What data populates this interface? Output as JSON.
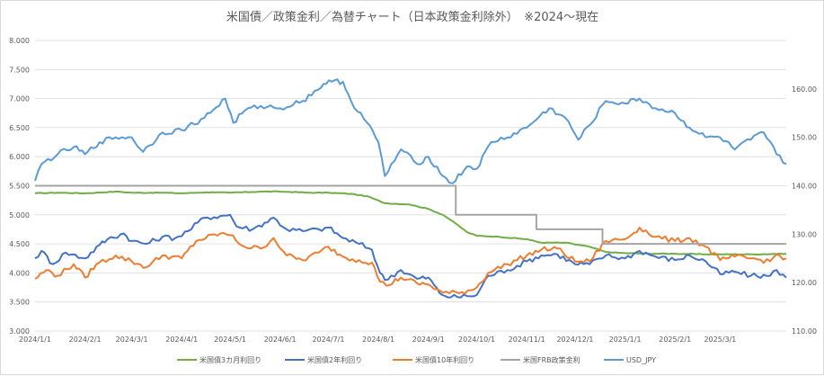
{
  "chart_data": {
    "type": "line",
    "title": "米国債／政策金利／為替チャート（日本政策金利除外）　※2024～現在",
    "x_ticks": [
      "2024/1/1",
      "2024/2/1",
      "2024/3/1",
      "2024/4/1",
      "2024/5/1",
      "2024/6/1",
      "2024/7/1",
      "2024/8/1",
      "2024/9/1",
      "2024/10/1",
      "2024/11/1",
      "2024/12/1",
      "2025/1/1",
      "2025/2/1",
      "2025/3/1"
    ],
    "y_left": {
      "min": 3.0,
      "max": 8.0,
      "step": 0.5,
      "tick_labels": [
        "3.000",
        "3.500",
        "4.000",
        "4.500",
        "5.000",
        "5.500",
        "6.000",
        "6.500",
        "7.000",
        "7.500",
        "8.000"
      ]
    },
    "y_right": {
      "min": 110,
      "max": 170,
      "step": 10,
      "tick_labels": [
        "110.00",
        "120.00",
        "130.00",
        "140.00",
        "150.00",
        "160.00"
      ]
    },
    "x_start": "2024-01-01",
    "x_end": "2025-04-11",
    "grid": "horizontal",
    "legend_position": "bottom",
    "series": [
      {
        "name": "米国債3カ月利回り",
        "color": "#70ad47",
        "axis": "left",
        "points": [
          [
            "2024-01-01",
            5.37
          ],
          [
            "2024-01-15",
            5.38
          ],
          [
            "2024-02-01",
            5.37
          ],
          [
            "2024-02-20",
            5.4
          ],
          [
            "2024-03-01",
            5.38
          ],
          [
            "2024-03-20",
            5.38
          ],
          [
            "2024-04-01",
            5.37
          ],
          [
            "2024-04-20",
            5.39
          ],
          [
            "2024-05-01",
            5.38
          ],
          [
            "2024-05-20",
            5.4
          ],
          [
            "2024-06-01",
            5.4
          ],
          [
            "2024-06-20",
            5.38
          ],
          [
            "2024-07-01",
            5.38
          ],
          [
            "2024-07-15",
            5.36
          ],
          [
            "2024-07-25",
            5.32
          ],
          [
            "2024-08-05",
            5.2
          ],
          [
            "2024-08-20",
            5.18
          ],
          [
            "2024-09-01",
            5.1
          ],
          [
            "2024-09-10",
            5.0
          ],
          [
            "2024-09-18",
            4.85
          ],
          [
            "2024-09-25",
            4.7
          ],
          [
            "2024-10-01",
            4.64
          ],
          [
            "2024-10-15",
            4.62
          ],
          [
            "2024-11-01",
            4.58
          ],
          [
            "2024-11-10",
            4.52
          ],
          [
            "2024-11-25",
            4.52
          ],
          [
            "2024-12-10",
            4.45
          ],
          [
            "2024-12-20",
            4.36
          ],
          [
            "2025-01-01",
            4.34
          ],
          [
            "2025-01-20",
            4.33
          ],
          [
            "2025-02-01",
            4.33
          ],
          [
            "2025-02-20",
            4.32
          ],
          [
            "2025-03-01",
            4.32
          ],
          [
            "2025-03-20",
            4.32
          ],
          [
            "2025-04-11",
            4.33
          ]
        ]
      },
      {
        "name": "米国債2年利回り",
        "color": "#4472c4",
        "axis": "left",
        "points": [
          [
            "2024-01-01",
            4.25
          ],
          [
            "2024-01-05",
            4.38
          ],
          [
            "2024-01-12",
            4.15
          ],
          [
            "2024-01-20",
            4.35
          ],
          [
            "2024-02-01",
            4.25
          ],
          [
            "2024-02-10",
            4.48
          ],
          [
            "2024-02-15",
            4.58
          ],
          [
            "2024-02-25",
            4.68
          ],
          [
            "2024-03-01",
            4.55
          ],
          [
            "2024-03-10",
            4.5
          ],
          [
            "2024-03-20",
            4.62
          ],
          [
            "2024-03-28",
            4.6
          ],
          [
            "2024-04-05",
            4.72
          ],
          [
            "2024-04-15",
            4.95
          ],
          [
            "2024-04-25",
            4.98
          ],
          [
            "2024-05-01",
            5.0
          ],
          [
            "2024-05-05",
            4.8
          ],
          [
            "2024-05-15",
            4.75
          ],
          [
            "2024-05-28",
            4.95
          ],
          [
            "2024-06-05",
            4.75
          ],
          [
            "2024-06-15",
            4.72
          ],
          [
            "2024-06-25",
            4.75
          ],
          [
            "2024-07-01",
            4.78
          ],
          [
            "2024-07-10",
            4.6
          ],
          [
            "2024-07-20",
            4.5
          ],
          [
            "2024-07-28",
            4.4
          ],
          [
            "2024-08-02",
            4.0
          ],
          [
            "2024-08-05",
            3.88
          ],
          [
            "2024-08-15",
            4.05
          ],
          [
            "2024-08-25",
            3.9
          ],
          [
            "2024-09-01",
            3.92
          ],
          [
            "2024-09-08",
            3.65
          ],
          [
            "2024-09-15",
            3.58
          ],
          [
            "2024-09-25",
            3.6
          ],
          [
            "2024-10-01",
            3.62
          ],
          [
            "2024-10-08",
            3.95
          ],
          [
            "2024-10-20",
            4.05
          ],
          [
            "2024-11-01",
            4.2
          ],
          [
            "2024-11-10",
            4.3
          ],
          [
            "2024-11-20",
            4.32
          ],
          [
            "2024-12-01",
            4.15
          ],
          [
            "2024-12-10",
            4.15
          ],
          [
            "2024-12-20",
            4.3
          ],
          [
            "2025-01-01",
            4.25
          ],
          [
            "2025-01-10",
            4.38
          ],
          [
            "2025-01-20",
            4.28
          ],
          [
            "2025-02-01",
            4.22
          ],
          [
            "2025-02-10",
            4.3
          ],
          [
            "2025-02-20",
            4.2
          ],
          [
            "2025-03-01",
            3.98
          ],
          [
            "2025-03-10",
            4.02
          ],
          [
            "2025-03-20",
            3.95
          ],
          [
            "2025-04-01",
            3.95
          ],
          [
            "2025-04-05",
            4.05
          ],
          [
            "2025-04-11",
            3.92
          ]
        ]
      },
      {
        "name": "米国債10年利回り",
        "color": "#ed7d31",
        "axis": "left",
        "points": [
          [
            "2024-01-01",
            3.9
          ],
          [
            "2024-01-08",
            4.05
          ],
          [
            "2024-01-15",
            3.95
          ],
          [
            "2024-01-25",
            4.15
          ],
          [
            "2024-02-01",
            3.92
          ],
          [
            "2024-02-08",
            4.15
          ],
          [
            "2024-02-20",
            4.3
          ],
          [
            "2024-03-01",
            4.2
          ],
          [
            "2024-03-10",
            4.1
          ],
          [
            "2024-03-20",
            4.3
          ],
          [
            "2024-04-01",
            4.25
          ],
          [
            "2024-04-10",
            4.55
          ],
          [
            "2024-04-25",
            4.68
          ],
          [
            "2024-05-01",
            4.65
          ],
          [
            "2024-05-10",
            4.45
          ],
          [
            "2024-05-20",
            4.42
          ],
          [
            "2024-05-28",
            4.6
          ],
          [
            "2024-06-05",
            4.3
          ],
          [
            "2024-06-15",
            4.22
          ],
          [
            "2024-06-25",
            4.35
          ],
          [
            "2024-07-01",
            4.45
          ],
          [
            "2024-07-10",
            4.28
          ],
          [
            "2024-07-20",
            4.22
          ],
          [
            "2024-07-28",
            4.18
          ],
          [
            "2024-08-02",
            3.85
          ],
          [
            "2024-08-06",
            3.78
          ],
          [
            "2024-08-15",
            3.92
          ],
          [
            "2024-08-25",
            3.82
          ],
          [
            "2024-09-01",
            3.8
          ],
          [
            "2024-09-10",
            3.66
          ],
          [
            "2024-09-20",
            3.65
          ],
          [
            "2024-10-01",
            3.75
          ],
          [
            "2024-10-08",
            4.0
          ],
          [
            "2024-10-20",
            4.15
          ],
          [
            "2024-11-01",
            4.3
          ],
          [
            "2024-11-10",
            4.4
          ],
          [
            "2024-11-20",
            4.42
          ],
          [
            "2024-12-01",
            4.2
          ],
          [
            "2024-12-10",
            4.2
          ],
          [
            "2024-12-20",
            4.55
          ],
          [
            "2025-01-01",
            4.58
          ],
          [
            "2025-01-10",
            4.78
          ],
          [
            "2025-01-20",
            4.62
          ],
          [
            "2025-02-01",
            4.55
          ],
          [
            "2025-02-10",
            4.6
          ],
          [
            "2025-02-20",
            4.45
          ],
          [
            "2025-03-01",
            4.22
          ],
          [
            "2025-03-10",
            4.28
          ],
          [
            "2025-03-20",
            4.25
          ],
          [
            "2025-04-01",
            4.2
          ],
          [
            "2025-04-05",
            4.32
          ],
          [
            "2025-04-11",
            4.25
          ]
        ]
      },
      {
        "name": "米国FRB政策金利",
        "color": "#a5a5a5",
        "axis": "left",
        "step": true,
        "points": [
          [
            "2024-01-01",
            5.5
          ],
          [
            "2024-09-18",
            5.5
          ],
          [
            "2024-09-18",
            5.0
          ],
          [
            "2024-11-07",
            5.0
          ],
          [
            "2024-11-07",
            4.75
          ],
          [
            "2024-12-18",
            4.75
          ],
          [
            "2024-12-18",
            4.5
          ],
          [
            "2025-04-11",
            4.5
          ]
        ]
      },
      {
        "name": "USD_JPY",
        "color": "#5b9bd5",
        "axis": "right",
        "points": [
          [
            "2024-01-01",
            141.0
          ],
          [
            "2024-01-05",
            144.5
          ],
          [
            "2024-01-15",
            146.5
          ],
          [
            "2024-01-25",
            148.0
          ],
          [
            "2024-02-01",
            146.5
          ],
          [
            "2024-02-10",
            149.0
          ],
          [
            "2024-02-20",
            150.0
          ],
          [
            "2024-03-01",
            150.0
          ],
          [
            "2024-03-08",
            147.0
          ],
          [
            "2024-03-20",
            151.0
          ],
          [
            "2024-04-01",
            151.5
          ],
          [
            "2024-04-15",
            154.0
          ],
          [
            "2024-04-28",
            158.0
          ],
          [
            "2024-05-03",
            153.0
          ],
          [
            "2024-05-10",
            155.5
          ],
          [
            "2024-05-20",
            156.5
          ],
          [
            "2024-06-01",
            156.0
          ],
          [
            "2024-06-15",
            157.5
          ],
          [
            "2024-06-28",
            161.0
          ],
          [
            "2024-07-03",
            161.5
          ],
          [
            "2024-07-10",
            161.5
          ],
          [
            "2024-07-15",
            157.5
          ],
          [
            "2024-07-25",
            153.0
          ],
          [
            "2024-08-01",
            149.0
          ],
          [
            "2024-08-05",
            142.0
          ],
          [
            "2024-08-15",
            147.5
          ],
          [
            "2024-08-25",
            144.5
          ],
          [
            "2024-09-01",
            146.0
          ],
          [
            "2024-09-10",
            142.0
          ],
          [
            "2024-09-16",
            140.5
          ],
          [
            "2024-09-25",
            144.0
          ],
          [
            "2024-10-01",
            143.5
          ],
          [
            "2024-10-10",
            149.0
          ],
          [
            "2024-10-20",
            150.0
          ],
          [
            "2024-11-01",
            152.0
          ],
          [
            "2024-11-15",
            156.0
          ],
          [
            "2024-11-25",
            154.0
          ],
          [
            "2024-12-03",
            149.5
          ],
          [
            "2024-12-10",
            152.5
          ],
          [
            "2024-12-20",
            157.5
          ],
          [
            "2025-01-01",
            157.0
          ],
          [
            "2025-01-10",
            158.0
          ],
          [
            "2025-01-20",
            156.0
          ],
          [
            "2025-02-01",
            155.0
          ],
          [
            "2025-02-10",
            152.0
          ],
          [
            "2025-02-20",
            150.0
          ],
          [
            "2025-03-01",
            150.0
          ],
          [
            "2025-03-10",
            147.5
          ],
          [
            "2025-03-20",
            149.5
          ],
          [
            "2025-03-28",
            151.0
          ],
          [
            "2025-04-05",
            146.5
          ],
          [
            "2025-04-11",
            144.5
          ]
        ]
      }
    ]
  }
}
